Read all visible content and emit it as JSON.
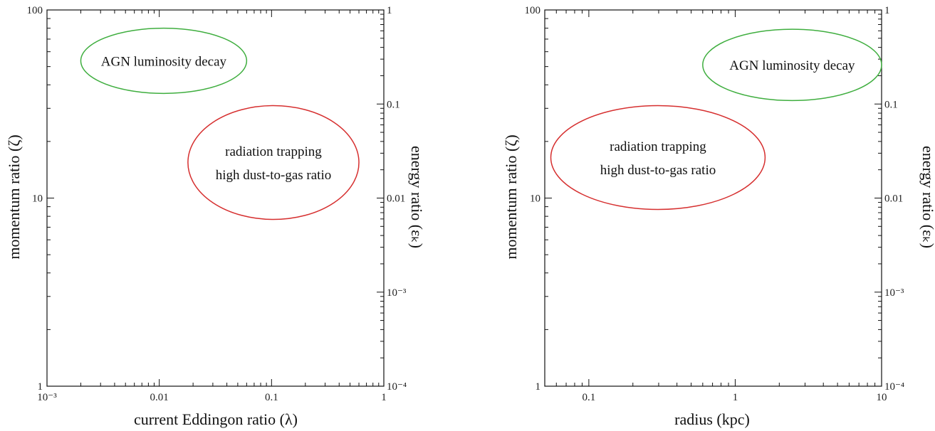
{
  "chart_data": [
    {
      "type": "scatter",
      "title": "",
      "xlabel": "current Eddingon ratio (λ)",
      "ylabel": "momentum ratio (ζ)",
      "y2label": "energy ratio (εₖ)",
      "x_scale": "log",
      "y_scale": "log",
      "y2_scale": "log",
      "xlim": [
        0.001,
        1
      ],
      "ylim": [
        1,
        100
      ],
      "y2lim": [
        0.0001,
        1
      ],
      "x_ticks": [
        {
          "value": 0.001,
          "label": "10⁻³"
        },
        {
          "value": 0.01,
          "label": "0.01"
        },
        {
          "value": 0.1,
          "label": "0.1"
        },
        {
          "value": 1,
          "label": "1"
        }
      ],
      "y_ticks": [
        {
          "value": 1,
          "label": "1"
        },
        {
          "value": 10,
          "label": "10"
        },
        {
          "value": 100,
          "label": "100"
        }
      ],
      "y2_ticks": [
        {
          "value": 0.0001,
          "label": "10⁻⁴"
        },
        {
          "value": 0.001,
          "label": "10⁻³"
        },
        {
          "value": 0.01,
          "label": "0.01"
        },
        {
          "value": 0.1,
          "label": "0.1"
        },
        {
          "value": 1,
          "label": "1"
        }
      ],
      "grid": false,
      "series": [],
      "annotations": [
        {
          "lines": [
            "AGN luminosity decay"
          ],
          "color": "#3fae3f",
          "x_range": [
            0.002,
            0.06
          ],
          "y_range": [
            36,
            80
          ]
        },
        {
          "lines": [
            "radiation trapping",
            "high dust-to-gas ratio"
          ],
          "color": "#d62f2f",
          "x_range": [
            0.018,
            0.6
          ],
          "y_range": [
            7.7,
            31
          ]
        }
      ]
    },
    {
      "type": "scatter",
      "title": "",
      "xlabel": "radius (kpc)",
      "ylabel": "momentum ratio (ζ)",
      "y2label": "energy ratio (εₖ)",
      "x_scale": "log",
      "y_scale": "log",
      "y2_scale": "log",
      "xlim": [
        0.05,
        10
      ],
      "ylim": [
        1,
        100
      ],
      "y2lim": [
        0.0001,
        1
      ],
      "x_ticks": [
        {
          "value": 0.1,
          "label": "0.1"
        },
        {
          "value": 1,
          "label": "1"
        },
        {
          "value": 10,
          "label": "10"
        }
      ],
      "y_ticks": [
        {
          "value": 1,
          "label": "1"
        },
        {
          "value": 10,
          "label": "10"
        },
        {
          "value": 100,
          "label": "100"
        }
      ],
      "y2_ticks": [
        {
          "value": 0.0001,
          "label": "10⁻⁴"
        },
        {
          "value": 0.001,
          "label": "10⁻³"
        },
        {
          "value": 0.01,
          "label": "0.01"
        },
        {
          "value": 0.1,
          "label": "0.1"
        },
        {
          "value": 1,
          "label": "1"
        }
      ],
      "grid": false,
      "series": [],
      "annotations": [
        {
          "lines": [
            "AGN luminosity decay"
          ],
          "color": "#3fae3f",
          "x_range": [
            0.6,
            10
          ],
          "y_range": [
            33,
            79
          ]
        },
        {
          "lines": [
            "radiation trapping",
            "high dust-to-gas ratio"
          ],
          "color": "#d62f2f",
          "x_range": [
            0.055,
            1.6
          ],
          "y_range": [
            8.7,
            31
          ]
        }
      ]
    }
  ]
}
